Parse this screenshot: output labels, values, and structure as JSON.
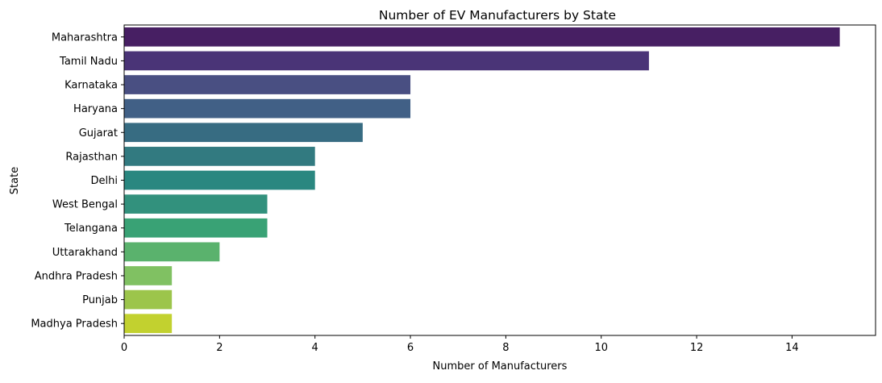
{
  "chart_data": {
    "type": "bar",
    "orientation": "horizontal",
    "title": "Number of EV Manufacturers by State",
    "xlabel": "Number of Manufacturers",
    "ylabel": "State",
    "xlim": [
      0,
      15.75
    ],
    "xticks": [
      0,
      2,
      4,
      6,
      8,
      10,
      12,
      14
    ],
    "grid": false,
    "categories": [
      "Maharashtra",
      "Tamil Nadu",
      "Karnataka",
      "Haryana",
      "Gujarat",
      "Rajasthan",
      "Delhi",
      "West Bengal",
      "Telangana",
      "Uttarakhand",
      "Andhra Pradesh",
      "Punjab",
      "Madhya Pradesh"
    ],
    "values": [
      15,
      11,
      6,
      6,
      5,
      4,
      4,
      3,
      3,
      2,
      1,
      1,
      1
    ],
    "colors": [
      "#471f63",
      "#4a3477",
      "#494f82",
      "#416086",
      "#376c82",
      "#327a80",
      "#2a8780",
      "#32917d",
      "#39a275",
      "#5ab26d",
      "#80c162",
      "#9cc54b",
      "#c2d12f"
    ],
    "colormap": "viridis"
  }
}
